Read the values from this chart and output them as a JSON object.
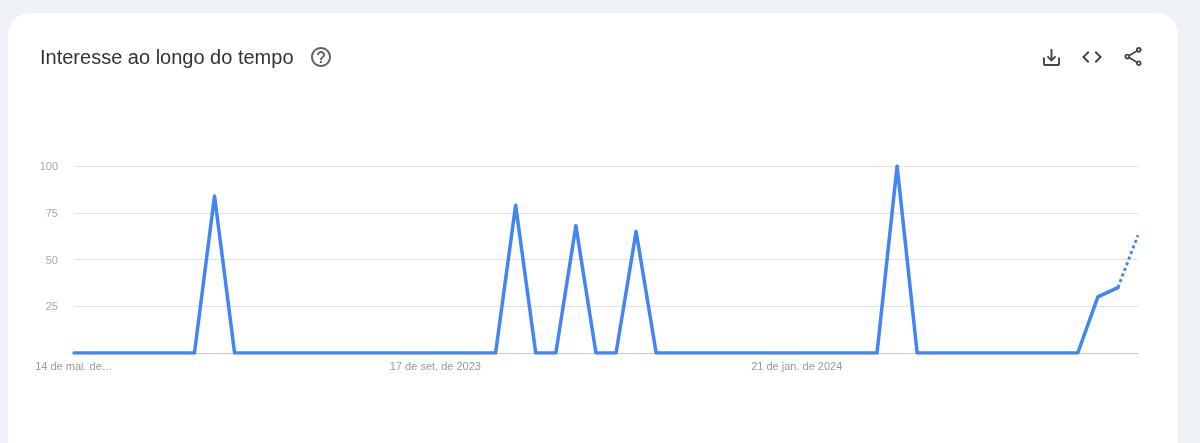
{
  "chart_data": {
    "type": "line",
    "title": "Interesse ao longo do tempo",
    "categories": [
      "14 de mai. de…",
      null,
      null,
      null,
      null,
      null,
      null,
      null,
      null,
      null,
      null,
      null,
      null,
      null,
      null,
      null,
      null,
      null,
      "17 de set. de 2023",
      null,
      null,
      null,
      null,
      null,
      null,
      null,
      null,
      null,
      null,
      null,
      null,
      null,
      null,
      null,
      null,
      null,
      "21 de jan. de 2024",
      null,
      null,
      null,
      null,
      null,
      null,
      null,
      null,
      null,
      null,
      null,
      null,
      null,
      null,
      null,
      null,
      null
    ],
    "series": [
      {
        "color": "#4285f4",
        "line_style": "solid",
        "values": [
          0,
          0,
          0,
          0,
          0,
          0,
          0,
          84,
          0,
          0,
          0,
          0,
          0,
          0,
          0,
          0,
          0,
          0,
          0,
          0,
          0,
          0,
          79,
          0,
          0,
          68,
          0,
          0,
          65,
          0,
          0,
          0,
          0,
          0,
          0,
          0,
          0,
          0,
          0,
          0,
          0,
          100,
          0,
          0,
          0,
          0,
          0,
          0,
          0,
          0,
          0,
          30,
          35,
          null
        ]
      },
      {
        "color": "#4285f4",
        "line_style": "dotted",
        "values": [
          null,
          null,
          null,
          null,
          null,
          null,
          null,
          null,
          null,
          null,
          null,
          null,
          null,
          null,
          null,
          null,
          null,
          null,
          null,
          null,
          null,
          null,
          null,
          null,
          null,
          null,
          null,
          null,
          null,
          null,
          null,
          null,
          null,
          null,
          null,
          null,
          null,
          null,
          null,
          null,
          null,
          null,
          null,
          null,
          null,
          null,
          null,
          null,
          null,
          null,
          null,
          null,
          35,
          63
        ]
      }
    ],
    "ylim": [
      0,
      100
    ],
    "yticks": [
      25,
      50,
      75,
      100
    ],
    "grid": "y",
    "marker": "none"
  }
}
